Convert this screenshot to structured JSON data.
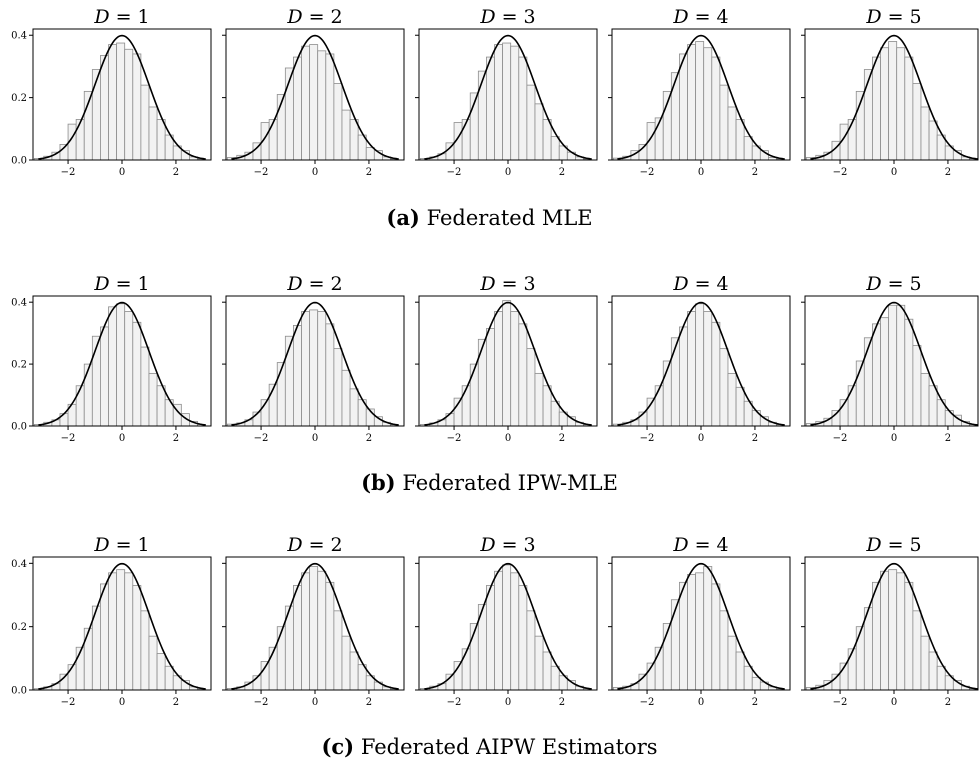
{
  "figure": {
    "rows": [
      {
        "tag": "(a)",
        "caption": "Federated MLE"
      },
      {
        "tag": "(b)",
        "caption": "Federated IPW-MLE"
      },
      {
        "tag": "(c)",
        "caption": "Federated AIPW Estimators"
      }
    ]
  },
  "chart_data": [
    {
      "type": "histogram",
      "row": "(a)",
      "panel_titles": [
        "D = 1",
        "D = 2",
        "D = 3",
        "D = 4",
        "D = 5"
      ],
      "xticks": [
        -2,
        0,
        2
      ],
      "yticks": [
        0.0,
        0.2,
        0.4
      ],
      "xlim": [
        -3.3,
        3.3
      ],
      "ylim": [
        0,
        0.42
      ],
      "bin_edges": [
        -3.25,
        -2.9,
        -2.6,
        -2.3,
        -2.0,
        -1.7,
        -1.4,
        -1.1,
        -0.8,
        -0.5,
        -0.2,
        0.1,
        0.4,
        0.7,
        1.0,
        1.3,
        1.6,
        1.9,
        2.2,
        2.5,
        2.8,
        3.1
      ],
      "overlay": "standard normal density N(0,1)",
      "panels": [
        {
          "title": "D = 1",
          "counts": [
            0.005,
            0.012,
            0.025,
            0.05,
            0.115,
            0.13,
            0.22,
            0.29,
            0.335,
            0.37,
            0.375,
            0.355,
            0.34,
            0.24,
            0.17,
            0.13,
            0.08,
            0.045,
            0.03,
            0.01,
            0.003
          ]
        },
        {
          "title": "D = 2",
          "counts": [
            0.008,
            0.015,
            0.025,
            0.055,
            0.12,
            0.13,
            0.21,
            0.295,
            0.33,
            0.365,
            0.37,
            0.35,
            0.34,
            0.245,
            0.16,
            0.13,
            0.08,
            0.04,
            0.03,
            0.01,
            0.003
          ]
        },
        {
          "title": "D = 3",
          "counts": [
            0.005,
            0.01,
            0.02,
            0.055,
            0.12,
            0.13,
            0.215,
            0.285,
            0.33,
            0.37,
            0.375,
            0.365,
            0.33,
            0.24,
            0.18,
            0.13,
            0.075,
            0.045,
            0.025,
            0.01,
            0.003
          ]
        },
        {
          "title": "D = 4",
          "counts": [
            0.006,
            0.012,
            0.03,
            0.05,
            0.12,
            0.135,
            0.22,
            0.28,
            0.34,
            0.37,
            0.38,
            0.36,
            0.33,
            0.24,
            0.17,
            0.13,
            0.075,
            0.045,
            0.03,
            0.008,
            0.003
          ]
        },
        {
          "title": "D = 5",
          "counts": [
            0.008,
            0.015,
            0.025,
            0.06,
            0.115,
            0.13,
            0.22,
            0.29,
            0.33,
            0.36,
            0.38,
            0.36,
            0.33,
            0.245,
            0.17,
            0.125,
            0.08,
            0.045,
            0.03,
            0.01,
            0.004
          ]
        }
      ]
    },
    {
      "type": "histogram",
      "row": "(b)",
      "panel_titles": [
        "D = 1",
        "D = 2",
        "D = 3",
        "D = 4",
        "D = 5"
      ],
      "xticks": [
        -2,
        0,
        2
      ],
      "yticks": [
        0.0,
        0.2,
        0.4
      ],
      "xlim": [
        -3.3,
        3.3
      ],
      "ylim": [
        0,
        0.42
      ],
      "bin_edges": [
        -3.25,
        -2.9,
        -2.6,
        -2.3,
        -2.0,
        -1.7,
        -1.4,
        -1.1,
        -0.8,
        -0.5,
        -0.2,
        0.1,
        0.4,
        0.7,
        1.0,
        1.3,
        1.6,
        1.9,
        2.2,
        2.5,
        2.8,
        3.1
      ],
      "overlay": "standard normal density N(0,1)",
      "panels": [
        {
          "title": "D = 1",
          "counts": [
            0.005,
            0.012,
            0.02,
            0.04,
            0.07,
            0.13,
            0.2,
            0.29,
            0.32,
            0.385,
            0.395,
            0.37,
            0.335,
            0.255,
            0.17,
            0.13,
            0.085,
            0.07,
            0.04,
            0.015,
            0.005
          ]
        },
        {
          "title": "D = 2",
          "counts": [
            0.006,
            0.01,
            0.02,
            0.045,
            0.085,
            0.135,
            0.205,
            0.29,
            0.325,
            0.37,
            0.375,
            0.37,
            0.33,
            0.25,
            0.18,
            0.12,
            0.085,
            0.055,
            0.03,
            0.012,
            0.004
          ]
        },
        {
          "title": "D = 3",
          "counts": [
            0.005,
            0.01,
            0.02,
            0.04,
            0.09,
            0.13,
            0.2,
            0.28,
            0.315,
            0.37,
            0.405,
            0.37,
            0.33,
            0.25,
            0.17,
            0.13,
            0.08,
            0.045,
            0.03,
            0.012,
            0.004
          ]
        },
        {
          "title": "D = 4",
          "counts": [
            0.006,
            0.012,
            0.02,
            0.045,
            0.09,
            0.13,
            0.21,
            0.285,
            0.32,
            0.37,
            0.395,
            0.37,
            0.335,
            0.25,
            0.17,
            0.125,
            0.08,
            0.05,
            0.03,
            0.012,
            0.004
          ]
        },
        {
          "title": "D = 5",
          "counts": [
            0.008,
            0.015,
            0.025,
            0.05,
            0.085,
            0.13,
            0.21,
            0.285,
            0.33,
            0.35,
            0.39,
            0.39,
            0.345,
            0.26,
            0.17,
            0.13,
            0.085,
            0.05,
            0.035,
            0.015,
            0.005
          ]
        }
      ]
    },
    {
      "type": "histogram",
      "row": "(c)",
      "panel_titles": [
        "D = 1",
        "D = 2",
        "D = 3",
        "D = 4",
        "D = 5"
      ],
      "xticks": [
        -2,
        0,
        2
      ],
      "yticks": [
        0.0,
        0.2,
        0.4
      ],
      "xlim": [
        -3.3,
        3.3
      ],
      "ylim": [
        0,
        0.42
      ],
      "bin_edges": [
        -3.25,
        -2.9,
        -2.6,
        -2.3,
        -2.0,
        -1.7,
        -1.4,
        -1.1,
        -0.8,
        -0.5,
        -0.2,
        0.1,
        0.4,
        0.7,
        1.0,
        1.3,
        1.6,
        1.9,
        2.2,
        2.5,
        2.8,
        3.1
      ],
      "overlay": "standard normal density N(0,1)",
      "panels": [
        {
          "title": "D = 1",
          "counts": [
            0.004,
            0.01,
            0.02,
            0.05,
            0.08,
            0.135,
            0.195,
            0.265,
            0.335,
            0.37,
            0.38,
            0.37,
            0.33,
            0.25,
            0.17,
            0.115,
            0.075,
            0.045,
            0.03,
            0.01,
            0.003
          ]
        },
        {
          "title": "D = 2",
          "counts": [
            0.005,
            0.01,
            0.025,
            0.045,
            0.09,
            0.135,
            0.2,
            0.265,
            0.33,
            0.37,
            0.39,
            0.375,
            0.34,
            0.25,
            0.17,
            0.12,
            0.08,
            0.045,
            0.025,
            0.01,
            0.003
          ]
        },
        {
          "title": "D = 3",
          "counts": [
            0.005,
            0.012,
            0.02,
            0.05,
            0.09,
            0.13,
            0.21,
            0.27,
            0.33,
            0.375,
            0.395,
            0.37,
            0.33,
            0.25,
            0.17,
            0.12,
            0.075,
            0.045,
            0.03,
            0.012,
            0.004
          ]
        },
        {
          "title": "D = 4",
          "counts": [
            0.008,
            0.012,
            0.02,
            0.05,
            0.085,
            0.135,
            0.21,
            0.285,
            0.34,
            0.365,
            0.37,
            0.39,
            0.335,
            0.25,
            0.17,
            0.12,
            0.075,
            0.04,
            0.025,
            0.01,
            0.003
          ]
        },
        {
          "title": "D = 5",
          "counts": [
            0.008,
            0.015,
            0.03,
            0.05,
            0.085,
            0.13,
            0.2,
            0.26,
            0.34,
            0.375,
            0.38,
            0.37,
            0.34,
            0.25,
            0.17,
            0.12,
            0.075,
            0.045,
            0.03,
            0.012,
            0.004
          ]
        }
      ]
    }
  ]
}
